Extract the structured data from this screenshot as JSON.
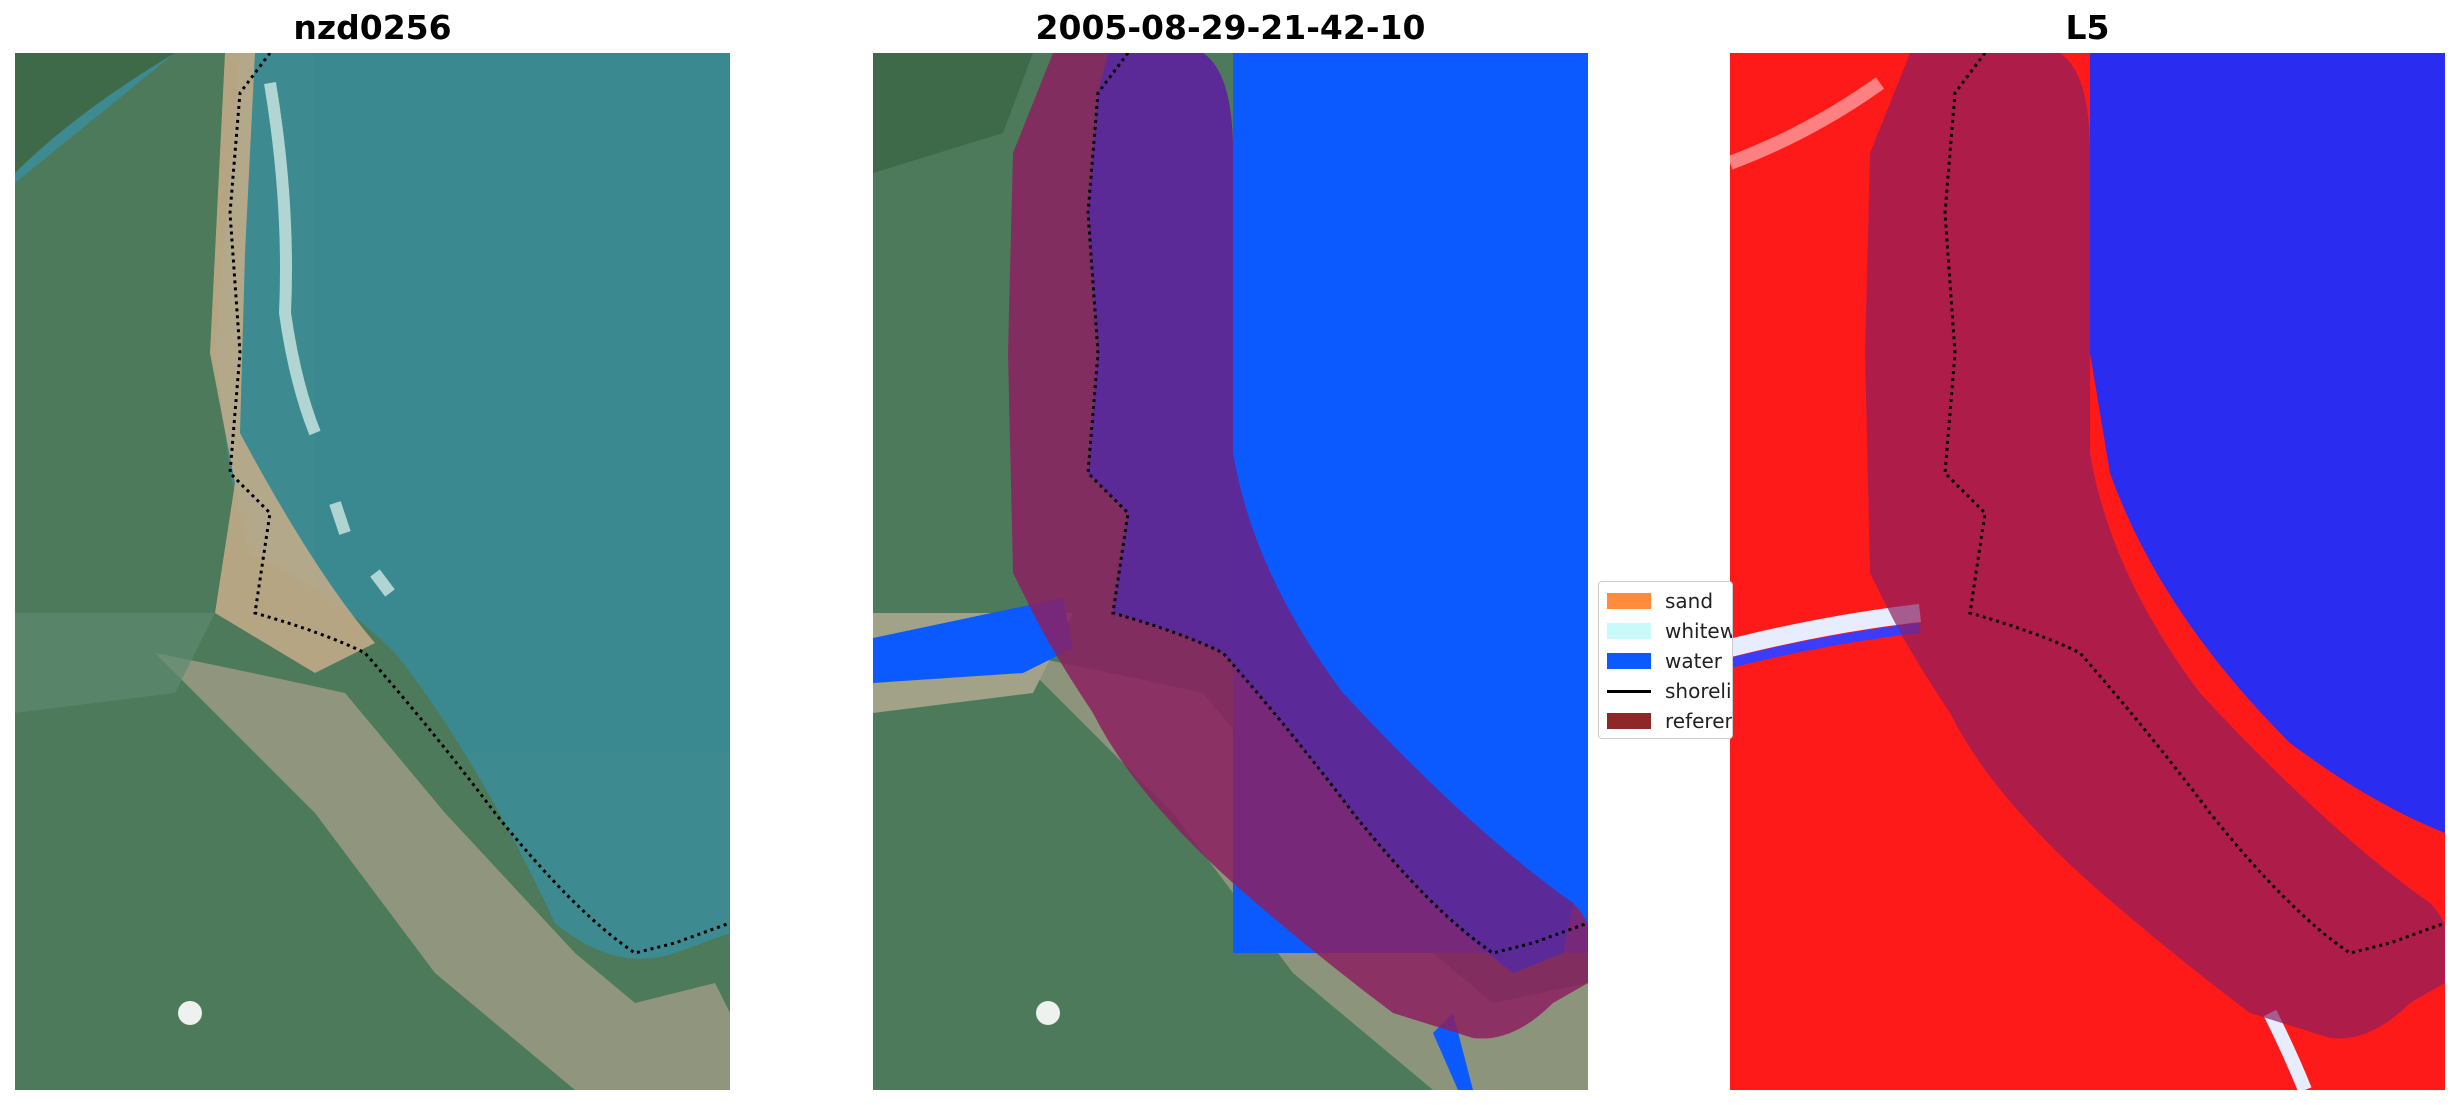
{
  "panels": [
    {
      "title": "nzd0256"
    },
    {
      "title": "2005-08-29-21-42-10"
    },
    {
      "title": "L5"
    }
  ],
  "legend": {
    "items": [
      {
        "label": "sand",
        "color": "#ff8c3c",
        "kind": "patch"
      },
      {
        "label": "whitewater",
        "color": "#c8fafa",
        "kind": "patch"
      },
      {
        "label": "water",
        "color": "#0a5aff",
        "kind": "patch"
      },
      {
        "label": "shoreline",
        "color": "#000000",
        "kind": "line"
      },
      {
        "label": "reference shoreline buffer",
        "color": "#8c2828",
        "kind": "patch"
      }
    ]
  },
  "colors": {
    "ocean": "#3f8c93",
    "land": "#4c7a5a",
    "water_class": "#0a5aff",
    "buffer": "#8c2060",
    "index_land": "#ff1a1a",
    "index_water": "#2a2cf0"
  }
}
